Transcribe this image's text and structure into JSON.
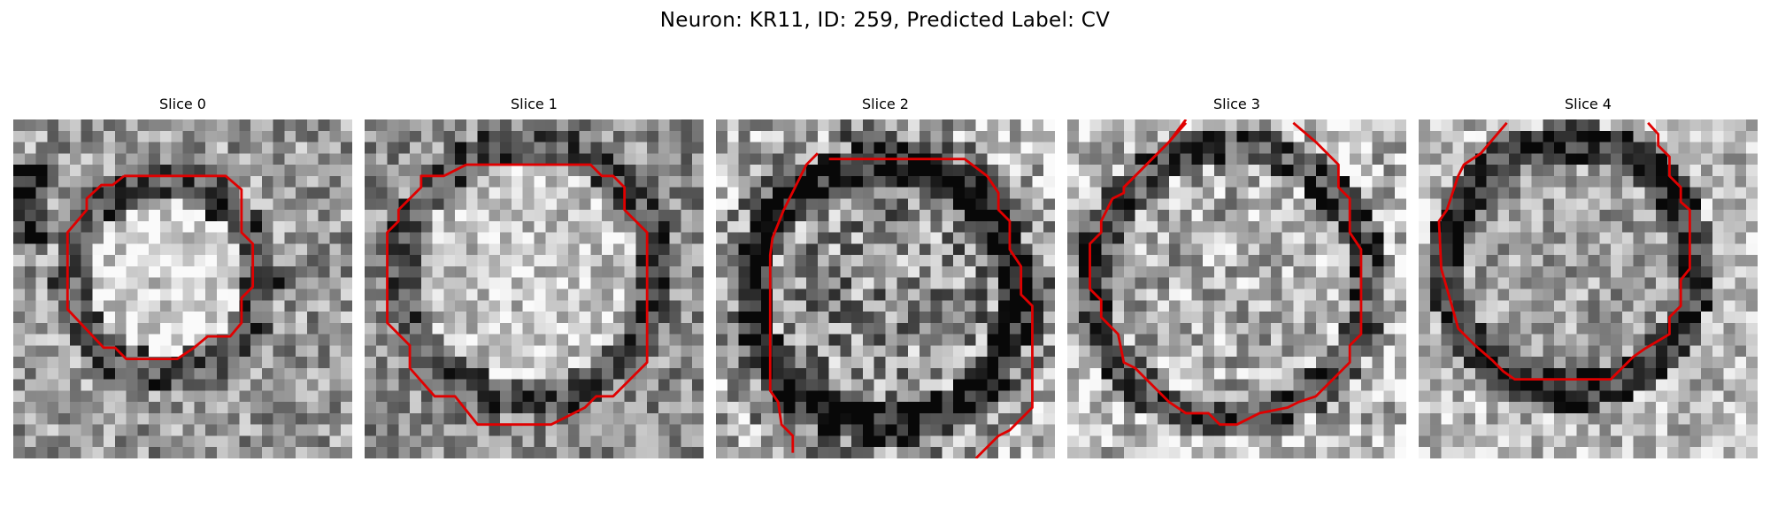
{
  "figure": {
    "title": "Neuron: KR11, ID: 259, Predicted Label: CV",
    "contour_color": "#e00000"
  },
  "panels": [
    {
      "title": "Slice 0"
    },
    {
      "title": "Slice 1"
    },
    {
      "title": "Slice 2"
    },
    {
      "title": "Slice 3"
    },
    {
      "title": "Slice 4"
    }
  ]
}
